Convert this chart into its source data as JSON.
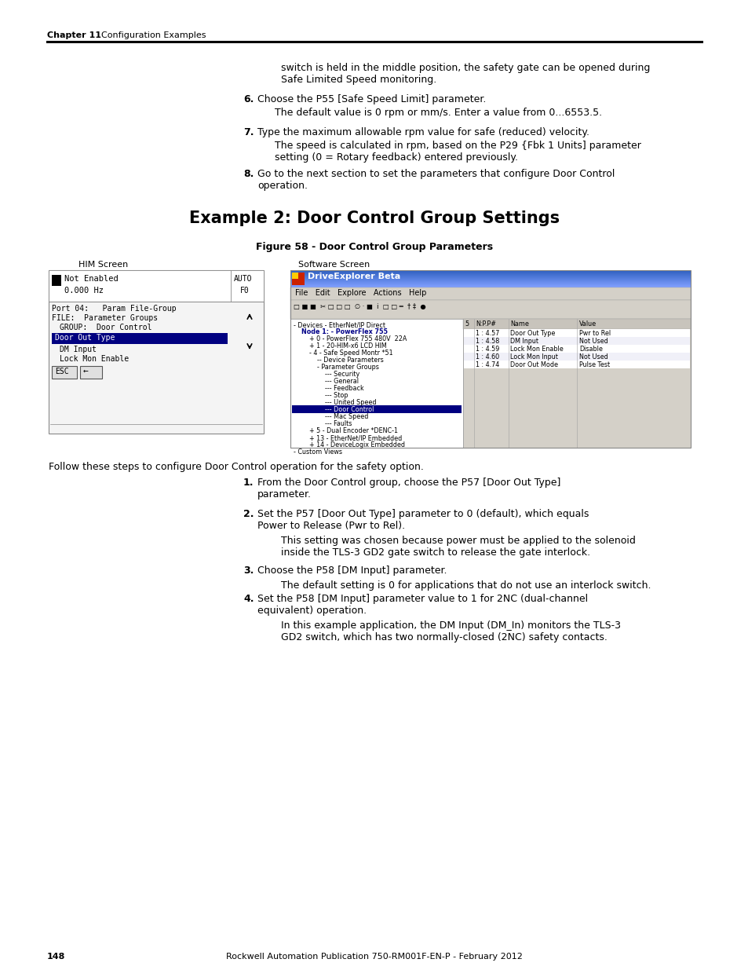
{
  "page_width": 9.54,
  "page_height": 12.35,
  "dpi": 100,
  "bg_color": "#ffffff",
  "header_chapter": "Chapter 11",
  "header_section": "    Configuration Examples",
  "footer_page": "148",
  "footer_center": "Rockwell Automation Publication 750-RM001F-EN-P - February 2012",
  "intro_line1": "switch is held in the middle position, the safety gate can be opened during",
  "intro_line2": "Safe Limited Speed monitoring.",
  "step6_num": "6.",
  "step6_text": "Choose the P55 [Safe Speed Limit] parameter.",
  "step6_sub": "The default value is 0 rpm or mm/s. Enter a value from 0...6553.5.",
  "step7_num": "7.",
  "step7_text": "Type the maximum allowable rpm value for safe (reduced) velocity.",
  "step7_sub1": "The speed is calculated in rpm, based on the P29 {Fbk 1 Units] parameter",
  "step7_sub2": "setting (0 = Rotary feedback) entered previously.",
  "step8_num": "8.",
  "step8_text": "Go to the next section to set the parameters that configure Door Control",
  "step8_text2": "operation.",
  "section_title": "Example 2: Door Control Group Settings",
  "figure_caption": "Figure 58 - Door Control Group Parameters",
  "him_label": "HIM Screen",
  "sw_label": "Software Screen",
  "follow_text": "Follow these steps to configure Door Control operation for the safety option.",
  "s1_num": "1.",
  "s1_line1": "From the Door Control group, choose the P57 [Door Out Type]",
  "s1_line2": "parameter.",
  "s2_num": "2.",
  "s2_line1": "Set the P57 [Door Out Type] parameter to 0 (default), which equals",
  "s2_line2": "Power to Release (Pwr to Rel).",
  "s2_sub1": "This setting was chosen because power must be applied to the solenoid",
  "s2_sub2": "inside the TLS-3 GD2 gate switch to release the gate interlock.",
  "s3_num": "3.",
  "s3_line1": "Choose the P58 [DM Input] parameter.",
  "s3_sub1": "The default setting is 0 for applications that do not use an interlock switch.",
  "s4_num": "4.",
  "s4_line1": "Set the P58 [DM Input] parameter value to 1 for 2NC (dual-channel",
  "s4_line2": "equivalent) operation.",
  "s4_sub1": "In this example application, the DM Input (DM_In) monitors the TLS-3",
  "s4_sub2": "GD2 switch, which has two normally-closed (2NC) safety contacts.",
  "tree_items": [
    [
      0,
      "- Devices - EtherNet/IP Direct",
      false,
      false
    ],
    [
      1,
      "Node 1: - PowerFlex 755",
      false,
      true
    ],
    [
      2,
      "+ 0 - PowerFlex 755 480V  22A",
      false,
      false
    ],
    [
      2,
      "+ 1 - 20-HIM-x6 LCD HIM",
      false,
      false
    ],
    [
      2,
      "- 4 - Safe Speed Montr *51",
      false,
      false
    ],
    [
      3,
      "-- Device Parameters",
      false,
      false
    ],
    [
      3,
      "- Parameter Groups",
      false,
      false
    ],
    [
      4,
      "--- Security",
      false,
      false
    ],
    [
      4,
      "--- General",
      false,
      false
    ],
    [
      4,
      "--- Feedback",
      false,
      false
    ],
    [
      4,
      "--- Stop",
      false,
      false
    ],
    [
      4,
      "--- United Speed",
      false,
      false
    ],
    [
      4,
      "--- Door Control",
      true,
      false
    ],
    [
      4,
      "--- Mac Speed",
      false,
      false
    ],
    [
      4,
      "--- Faults",
      false,
      false
    ],
    [
      2,
      "+ 5 - Dual Encoder *DENC-1",
      false,
      false
    ],
    [
      2,
      "+ 13 - EtherNet/IP Embedded",
      false,
      false
    ],
    [
      2,
      "+ 14 - DeviceLogix Embedded",
      false,
      false
    ],
    [
      0,
      "- Custom Views",
      false,
      false
    ]
  ],
  "rp_data": [
    [
      "1 : 4.57",
      "Door Out Type",
      "Pwr to Rel"
    ],
    [
      "1 : 4.58",
      "DM Input",
      "Not Used"
    ],
    [
      "1 : 4.59",
      "Lock Mon Enable",
      "Disable"
    ],
    [
      "1 : 4.60",
      "Lock Mon Input",
      "Not Used"
    ],
    [
      "1 : 4.74",
      "Door Out Mode",
      "Pulse Test"
    ]
  ]
}
